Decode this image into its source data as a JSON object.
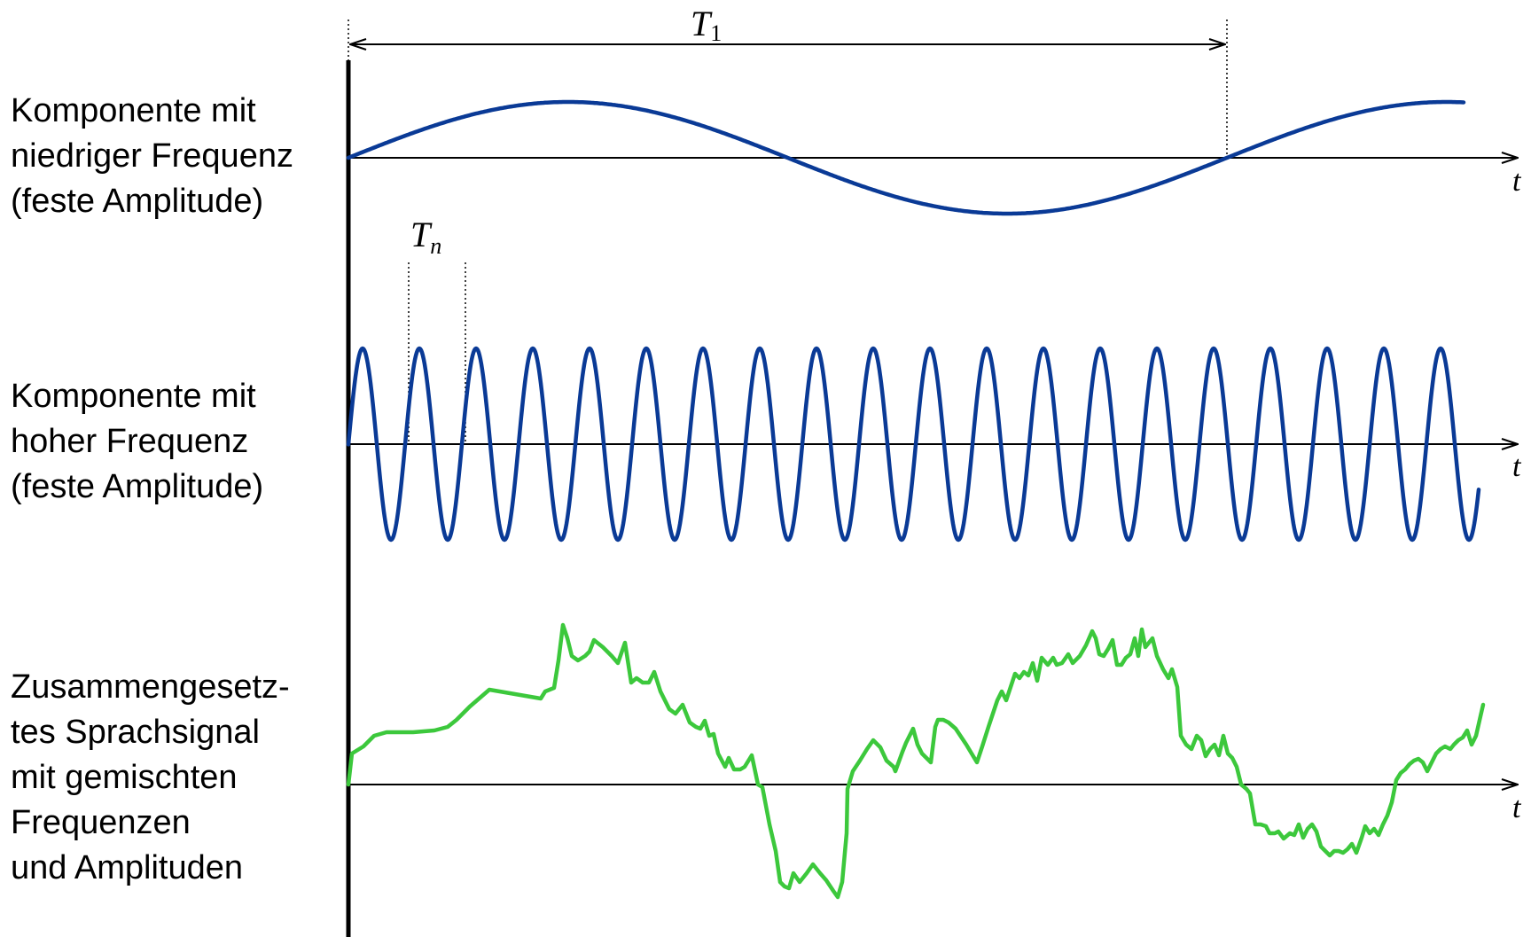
{
  "labels": {
    "low": [
      "Komponente mit",
      "niedriger Frequenz",
      "(feste Amplitude)"
    ],
    "high": [
      "Komponente mit",
      "hoher Frequenz",
      "(feste Amplitude)"
    ],
    "composite": [
      "Zusammengesetz-",
      "tes Sprachsignal",
      "mit gemischten",
      "Frequenzen",
      "und Amplituden"
    ]
  },
  "axis_label": "t",
  "period_low": {
    "symbol": "T",
    "subscript": "1"
  },
  "period_high": {
    "symbol": "T",
    "subscript": "n"
  },
  "colors": {
    "sine": "#0a3a96",
    "speech": "#3cc83c",
    "axis": "#000000"
  }
}
